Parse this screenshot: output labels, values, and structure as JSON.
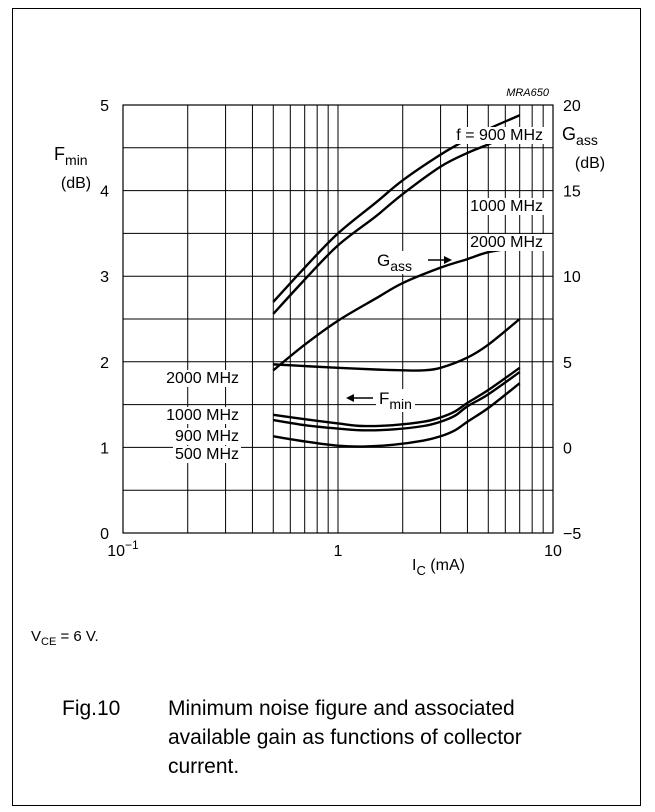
{
  "figure": {
    "code": "MRA650",
    "caption_number": "Fig.10",
    "caption_text": "Minimum noise figure and associated available gain as functions of collector current.",
    "condition_main": "V",
    "condition_sub": "CE",
    "condition_value": "= 6 V."
  },
  "chart_data": {
    "type": "line",
    "xlabel_main": "I",
    "xlabel_sub": "C",
    "xlabel_unit": "(mA)",
    "xscale": "log",
    "xlim": [
      0.1,
      10
    ],
    "x_ticks": [
      {
        "value": 0.1,
        "base": "10",
        "exp": "−1"
      },
      {
        "value": 1,
        "base": "1",
        "exp": ""
      },
      {
        "value": 10,
        "base": "10",
        "exp": ""
      }
    ],
    "left_axis": {
      "label_main": "F",
      "label_sub": "min",
      "label_unit": "(dB)",
      "ylim": [
        0,
        5
      ],
      "ticks": [
        "0",
        "1",
        "2",
        "3",
        "4",
        "5"
      ]
    },
    "right_axis": {
      "label_main": "G",
      "label_sub": "ass",
      "label_unit": "(dB)",
      "ylim": [
        -5,
        20
      ],
      "ticks": [
        "−5",
        "0",
        "5",
        "10",
        "15",
        "20"
      ]
    },
    "grid": true,
    "series": [
      {
        "name": "f = 900 MHz",
        "axis": "right",
        "x": [
          0.5,
          0.7,
          1.0,
          1.5,
          2.0,
          3.0,
          4.0,
          5.0,
          7.0
        ],
        "y": [
          8.5,
          10.5,
          12.5,
          14.3,
          15.6,
          17.1,
          18.0,
          18.6,
          19.4
        ]
      },
      {
        "name": "1000 MHz",
        "axis": "right",
        "x": [
          0.5,
          0.7,
          1.0,
          1.5,
          2.0,
          3.0,
          4.0,
          5.0,
          7.0
        ],
        "y": [
          7.8,
          9.8,
          11.8,
          13.5,
          14.8,
          16.4,
          17.2,
          17.7,
          18.5
        ]
      },
      {
        "name": "2000 MHz",
        "axis": "right",
        "x": [
          0.5,
          0.7,
          1.0,
          1.5,
          2.0,
          3.0,
          4.0,
          5.0,
          7.0
        ],
        "y": [
          4.5,
          6.0,
          7.4,
          8.7,
          9.6,
          10.5,
          11.0,
          11.4,
          11.7
        ]
      },
      {
        "name": "2000 MHz",
        "axis": "left",
        "x": [
          0.5,
          0.7,
          1.0,
          1.5,
          2.0,
          2.5,
          3.0,
          4.0,
          5.0,
          7.0
        ],
        "y": [
          1.97,
          1.95,
          1.93,
          1.91,
          1.9,
          1.9,
          1.93,
          2.05,
          2.2,
          2.5
        ]
      },
      {
        "name": "1000 MHz",
        "axis": "left",
        "x": [
          0.5,
          0.7,
          1.0,
          1.3,
          1.8,
          2.5,
          3.0,
          3.5,
          4.0,
          5.0,
          7.0
        ],
        "y": [
          1.38,
          1.33,
          1.28,
          1.25,
          1.26,
          1.3,
          1.35,
          1.42,
          1.52,
          1.67,
          1.93
        ]
      },
      {
        "name": "900 MHz",
        "axis": "left",
        "x": [
          0.5,
          0.7,
          1.0,
          1.3,
          1.8,
          2.5,
          3.0,
          3.5,
          4.0,
          5.0,
          7.0
        ],
        "y": [
          1.32,
          1.26,
          1.22,
          1.2,
          1.21,
          1.25,
          1.3,
          1.37,
          1.48,
          1.62,
          1.88
        ]
      },
      {
        "name": "500 MHz",
        "axis": "left",
        "x": [
          0.5,
          0.7,
          1.0,
          1.3,
          1.8,
          2.5,
          3.0,
          3.5,
          4.0,
          5.0,
          7.0
        ],
        "y": [
          1.13,
          1.07,
          1.02,
          1.01,
          1.03,
          1.08,
          1.13,
          1.2,
          1.3,
          1.46,
          1.75
        ]
      }
    ],
    "annotations": [
      {
        "text_main": "G",
        "text_sub": "ass",
        "target": "gain"
      },
      {
        "text_main": "F",
        "text_sub": "min",
        "target": "noise"
      }
    ]
  }
}
